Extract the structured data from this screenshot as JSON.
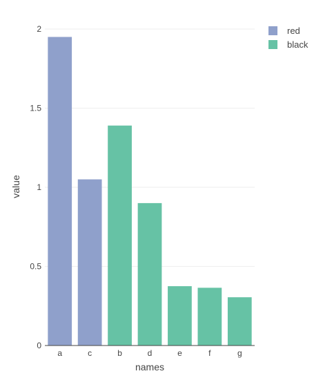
{
  "chart_data": {
    "type": "bar",
    "title": "",
    "xlabel": "names",
    "ylabel": "value",
    "ylim": [
      0,
      2
    ],
    "yticks": [
      0,
      0.5,
      1,
      1.5,
      2
    ],
    "ytick_labels": [
      "0",
      "0.5",
      "1",
      "1.5",
      "2"
    ],
    "grid": true,
    "legend_position": "top-right",
    "categories": [
      "a",
      "c",
      "b",
      "d",
      "e",
      "f",
      "g"
    ],
    "series": [
      {
        "name": "red",
        "color": "#8fa0cb",
        "values": [
          1.95,
          1.05,
          null,
          null,
          null,
          null,
          null
        ]
      },
      {
        "name": "black",
        "color": "#66c2a5",
        "values": [
          null,
          null,
          1.39,
          0.9,
          0.375,
          0.365,
          0.305
        ]
      }
    ]
  }
}
